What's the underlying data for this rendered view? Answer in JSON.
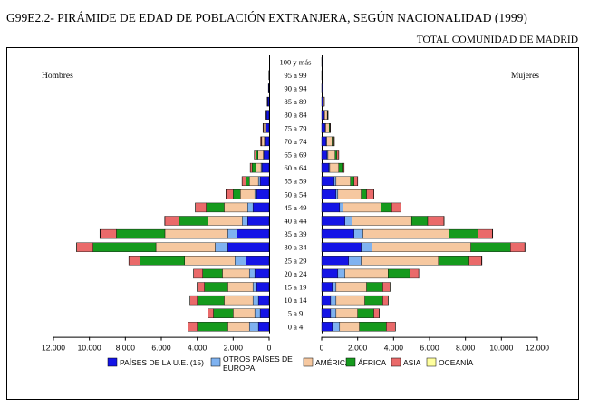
{
  "title": "G99E2.2- PIRÁMIDE DE EDAD DE POBLACIÓN EXTRANJERA, SEGÚN NACIONALIDAD (1999)",
  "subtitle": "TOTAL COMUNIDAD DE MADRID",
  "colors": {
    "PAÍSES DE LA U.E. (15)": "#1414e6",
    "OTROS PAÍSES DE EUROPA": "#7fb2f0",
    "AMÉRICA": "#f6c8a0",
    "ÁFRICA": "#159a1d",
    "ASIA": "#ea6a6a",
    "OCEANÍA": "#ffff9e"
  },
  "chart_data": {
    "type": "bar",
    "orientation": "horizontal-stacked-pyramid",
    "left_label": "Hombres",
    "right_label": "Mujeres",
    "categories": [
      "0 a 4",
      "5 a 9",
      "10 a 14",
      "15 a 19",
      "20 a 24",
      "25 a 29",
      "30 a 34",
      "35 a 39",
      "40 a 44",
      "45 a 49",
      "50 a 54",
      "55 a 59",
      "60 a 64",
      "65 a 69",
      "70 a 74",
      "75 a 79",
      "80 a 84",
      "85 a 89",
      "90 a 94",
      "95 a 99",
      "100 y más"
    ],
    "x_ticks_left": [
      "12.000",
      "10.000",
      "8.000",
      "6.000",
      "4.000",
      "2.000",
      "0"
    ],
    "x_ticks_right": [
      "0",
      "2.000",
      "4.000",
      "6.000",
      "8.000",
      "10.000",
      "12.000"
    ],
    "xlim": [
      0,
      12000
    ],
    "series_order": [
      "PAÍSES DE LA U.E. (15)",
      "OTROS PAÍSES DE EUROPA",
      "AMÉRICA",
      "ÁFRICA",
      "ASIA",
      "OCEANÍA"
    ],
    "men": {
      "PAÍSES DE LA U.E. (15)": [
        600,
        500,
        600,
        700,
        800,
        1300,
        2300,
        1800,
        1200,
        900,
        700,
        500,
        400,
        300,
        250,
        200,
        150,
        80,
        30,
        10,
        0
      ],
      "OTROS PAÍSES DE EUROPA": [
        500,
        300,
        300,
        200,
        300,
        600,
        700,
        500,
        300,
        300,
        100,
        100,
        50,
        20,
        10,
        5,
        5,
        0,
        0,
        0,
        0
      ],
      "AMÉRICA": [
        1200,
        1200,
        1600,
        1400,
        1500,
        2800,
        3300,
        3500,
        1900,
        1300,
        800,
        500,
        300,
        300,
        150,
        100,
        50,
        20,
        10,
        5,
        0
      ],
      "ÁFRICA": [
        1700,
        1100,
        1500,
        1300,
        1100,
        2500,
        3500,
        2700,
        1600,
        1000,
        400,
        200,
        200,
        100,
        20,
        10,
        5,
        0,
        0,
        0,
        0
      ],
      "ASIA": [
        500,
        300,
        400,
        400,
        500,
        600,
        900,
        900,
        800,
        600,
        400,
        200,
        100,
        100,
        50,
        30,
        20,
        10,
        5,
        0,
        0
      ],
      "OCEANÍA": [
        10,
        10,
        10,
        10,
        10,
        10,
        20,
        20,
        10,
        10,
        10,
        10,
        5,
        5,
        0,
        0,
        0,
        0,
        0,
        0,
        0
      ]
    },
    "women": {
      "PAÍSES DE LA U.E. (15)": [
        600,
        500,
        500,
        600,
        900,
        1500,
        2200,
        1800,
        1300,
        1000,
        800,
        700,
        400,
        300,
        250,
        200,
        150,
        80,
        40,
        15,
        5
      ],
      "OTROS PAÍSES DE EUROPA": [
        400,
        300,
        300,
        200,
        400,
        700,
        600,
        500,
        400,
        200,
        100,
        100,
        50,
        50,
        30,
        20,
        10,
        5,
        0,
        0,
        0
      ],
      "AMÉRICA": [
        1100,
        1200,
        1600,
        1700,
        2400,
        4300,
        5500,
        4800,
        3300,
        2100,
        1300,
        800,
        500,
        400,
        300,
        200,
        150,
        50,
        20,
        5,
        0
      ],
      "ÁFRICA": [
        1500,
        900,
        1000,
        900,
        1200,
        1700,
        2200,
        1600,
        900,
        600,
        300,
        200,
        200,
        100,
        100,
        50,
        30,
        10,
        5,
        0,
        0
      ],
      "ASIA": [
        500,
        300,
        300,
        400,
        500,
        700,
        800,
        800,
        900,
        500,
        400,
        200,
        100,
        100,
        30,
        20,
        20,
        10,
        5,
        0,
        0
      ],
      "OCEANÍA": [
        10,
        10,
        10,
        10,
        10,
        20,
        20,
        20,
        20,
        10,
        10,
        10,
        5,
        5,
        0,
        0,
        0,
        0,
        0,
        0,
        0
      ]
    },
    "legend": [
      {
        "label": "PAÍSES DE LA U.E. (15)"
      },
      {
        "label": "OTROS PAÍSES DE EUROPA"
      },
      {
        "label": "AMÉRICA"
      },
      {
        "label": "ÁFRICA"
      },
      {
        "label": "ASIA"
      },
      {
        "label": "OCEANÍA"
      }
    ]
  }
}
